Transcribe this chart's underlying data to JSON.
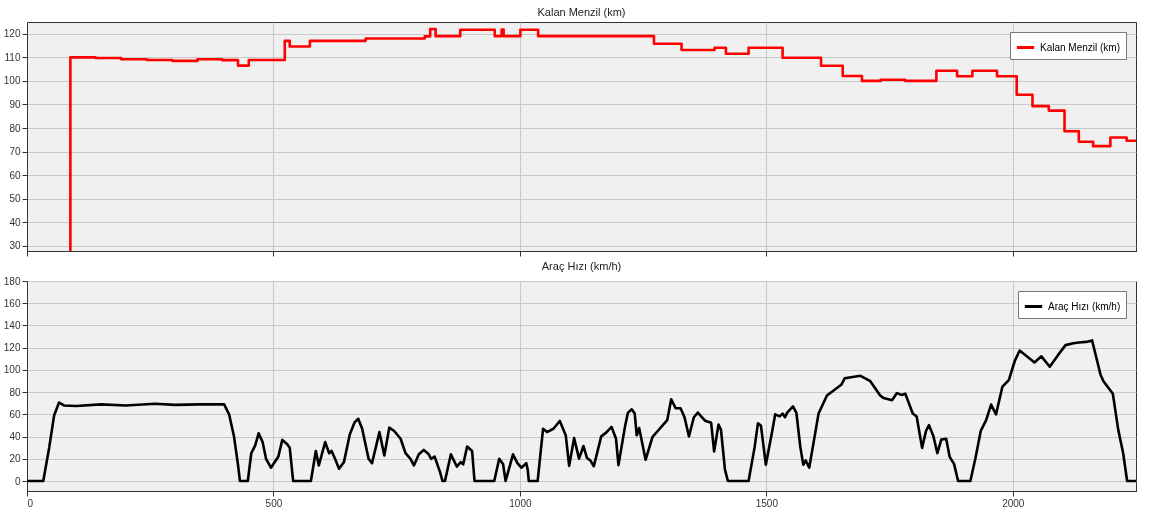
{
  "chart_data": [
    {
      "type": "step",
      "title": "Kalan Menzil (km)",
      "xlim": [
        0,
        2250
      ],
      "xticks": [
        0,
        500,
        1000,
        1500,
        2000
      ],
      "ylim": [
        27.8,
        125
      ],
      "yticks": [
        30,
        40,
        50,
        60,
        70,
        80,
        90,
        100,
        110,
        120
      ],
      "grid": true,
      "legend": "top right",
      "tick_labels": "y",
      "series": [
        {
          "name": "Kalan Menzil (km)",
          "color": "#ff0000",
          "x": [
            88,
            88,
            139,
            191,
            243,
            295,
            346,
            396,
            428,
            450,
            523,
            533,
            574,
            687,
            807,
            818,
            829,
            879,
            949,
            963,
            967,
            1001,
            1037,
            1272,
            1328,
            1395,
            1418,
            1464,
            1533,
            1611,
            1655,
            1694,
            1732,
            1782,
            1845,
            1887,
            1918,
            1968,
            2008,
            2040,
            2073,
            2105,
            2134,
            2163,
            2198,
            2231,
            2250
          ],
          "values": [
            27.8,
            110,
            109.7,
            109.2,
            108.9,
            108.5,
            109.2,
            108.8,
            106.5,
            108.9,
            117,
            114.6,
            117,
            118,
            118.9,
            122,
            119,
            121.7,
            119,
            121.8,
            119,
            121.7,
            119,
            115.8,
            113.1,
            114.1,
            111.5,
            114.1,
            109.8,
            106.4,
            102.1,
            100,
            100.5,
            100,
            104.3,
            102,
            104.3,
            102,
            94.1,
            89.3,
            87.4,
            78.6,
            74.2,
            72.3,
            76,
            74.6,
            74.6
          ]
        }
      ]
    },
    {
      "type": "line",
      "title": "Araç Hızı (km/h)",
      "xlim": [
        0,
        2250
      ],
      "xticks": [
        0,
        500,
        1000,
        1500,
        2000
      ],
      "ylim": [
        -9,
        180
      ],
      "yticks": [
        0,
        20,
        40,
        60,
        80,
        100,
        120,
        140,
        160,
        180
      ],
      "grid": true,
      "legend": "top right",
      "series": [
        {
          "name": "Araç Hızı (km/h)",
          "color": "#000000",
          "x": [
            0,
            33,
            45,
            55,
            65,
            75,
            100,
            150,
            200,
            260,
            300,
            350,
            400,
            410,
            420,
            428,
            432,
            448,
            455,
            463,
            470,
            478,
            485,
            495,
            510,
            518,
            528,
            533,
            540,
            576,
            586,
            592,
            605,
            613,
            618,
            625,
            633,
            643,
            655,
            665,
            672,
            680,
            693,
            700,
            715,
            725,
            735,
            745,
            758,
            768,
            778,
            785,
            795,
            805,
            815,
            820,
            827,
            838,
            843,
            848,
            860,
            872,
            880,
            885,
            893,
            903,
            908,
            948,
            958,
            966,
            971,
            986,
            995,
            1003,
            1013,
            1016,
            1018,
            1036,
            1047,
            1055,
            1068,
            1081,
            1093,
            1100,
            1110,
            1120,
            1129,
            1136,
            1143,
            1150,
            1165,
            1175,
            1186,
            1195,
            1200,
            1213,
            1219,
            1227,
            1233,
            1237,
            1242,
            1255,
            1269,
            1290,
            1299,
            1307,
            1316,
            1326,
            1334,
            1343,
            1353,
            1361,
            1376,
            1388,
            1394,
            1403,
            1408,
            1416,
            1422,
            1464,
            1476,
            1483,
            1489,
            1499,
            1512,
            1518,
            1527,
            1533,
            1538,
            1542,
            1554,
            1561,
            1569,
            1575,
            1580,
            1587,
            1594,
            1606,
            1623,
            1652,
            1659,
            1691,
            1711,
            1731,
            1738,
            1755,
            1765,
            1774,
            1782,
            1797,
            1805,
            1816,
            1824,
            1830,
            1839,
            1847,
            1855,
            1865,
            1872,
            1881,
            1889,
            1914,
            1924,
            1935,
            1946,
            1956,
            1966,
            1979,
            1992,
            2004,
            2014,
            2044,
            2058,
            2075,
            2092,
            2107,
            2123,
            2134,
            2149,
            2161,
            2178,
            2184,
            2203,
            2214,
            2224,
            2232,
            2250
          ],
          "values": [
            0,
            0,
            30,
            59,
            70.6,
            68,
            67.5,
            69,
            68,
            69.5,
            68.5,
            69,
            69,
            60,
            40,
            15,
            0,
            0,
            25,
            32,
            43,
            35,
            20,
            12,
            22,
            37,
            33,
            30,
            0,
            0,
            27,
            14,
            35,
            25,
            27,
            20,
            11,
            17,
            42,
            53,
            56,
            47,
            20,
            16,
            44,
            23,
            48,
            45,
            38,
            25,
            20,
            14,
            24,
            28,
            24,
            20,
            22,
            8,
            0,
            0,
            24,
            13,
            17,
            15,
            31,
            27,
            0,
            0,
            20,
            15,
            0,
            24,
            16,
            12,
            16,
            10,
            0,
            0,
            47,
            44,
            47,
            54,
            41.2,
            13.6,
            38.6,
            20.1,
            31.5,
            20.8,
            18.5,
            13.3,
            40.2,
            43.5,
            48.7,
            38,
            14.3,
            48.3,
            61.3,
            64.5,
            60.7,
            41.2,
            47.7,
            19.1,
            39.6,
            50.3,
            54.8,
            73.6,
            65.5,
            65.5,
            57.4,
            40.2,
            57.4,
            61.6,
            54.2,
            52.5,
            26.6,
            50.9,
            46,
            10.4,
            0,
            0,
            29.8,
            51.9,
            50,
            14.6,
            45.1,
            60,
            58.1,
            60.7,
            57.4,
            61.3,
            67.1,
            61.3,
            30.5,
            14.6,
            18.5,
            12,
            29.8,
            60.7,
            76.9,
            86.6,
            92.4,
            94.7,
            89.8,
            76.9,
            74.6,
            72.7,
            79.1,
            77.5,
            78.5,
            60.7,
            58.1,
            29.8,
            45.1,
            50.3,
            40.2,
            25,
            37.3,
            37.9,
            21.7,
            15.2,
            0,
            0,
            20.1,
            45.1,
            54.8,
            68.8,
            60,
            85,
            90.8,
            108,
            117.4,
            106.7,
            112.2,
            102.8,
            113.5,
            122.3,
            123.9,
            124.6,
            125.2,
            126.5,
            95.7,
            89.8,
            78.5,
            46,
            25,
            0,
            0
          ]
        }
      ]
    }
  ]
}
